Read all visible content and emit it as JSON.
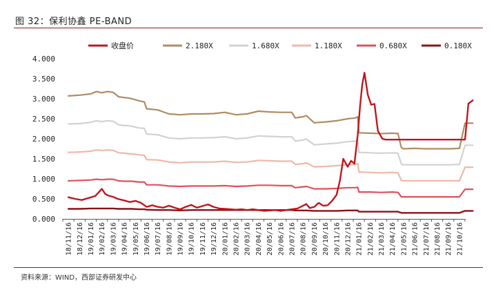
{
  "figure": {
    "title": "图 32：保利协鑫 PE-BAND",
    "source": "资料来源：WIND，西部证券研发中心"
  },
  "chart_data": {
    "type": "line",
    "title": "保利协鑫 PE-BAND",
    "xlabel": "",
    "ylabel": "",
    "ylim": [
      0,
      4
    ],
    "yticks": [
      "0.000",
      "0.500",
      "1.000",
      "1.500",
      "2.000",
      "2.500",
      "3.000",
      "3.500",
      "4.000"
    ],
    "grid": false,
    "legend_position": "top",
    "x_labels": [
      "18/11/16",
      "18/12/16",
      "19/01/16",
      "19/02/16",
      "19/03/16",
      "19/04/16",
      "19/05/16",
      "19/06/16",
      "19/07/16",
      "19/08/16",
      "19/09/16",
      "19/10/16",
      "19/11/16",
      "19/12/16",
      "20/01/16",
      "20/02/16",
      "20/03/16",
      "20/04/16",
      "20/05/16",
      "20/06/16",
      "20/07/16",
      "20/08/16",
      "20/09/16",
      "20/10/16",
      "20/11/16",
      "20/12/16",
      "21/01/16",
      "21/02/16",
      "21/03/16",
      "21/04/16",
      "21/05/16",
      "21/06/16",
      "21/07/16",
      "21/08/16",
      "21/09/16",
      "21/10/16"
    ],
    "series": [
      {
        "name": "收盘价",
        "color": "#c0161e",
        "width": 2.4,
        "x": [
          0,
          0.6,
          1.2,
          1.8,
          2.4,
          3,
          3.3,
          3.6,
          4,
          4.4,
          5,
          5.5,
          6,
          6.5,
          7,
          7.5,
          8,
          8.5,
          9,
          9.5,
          10,
          10.5,
          11,
          11.5,
          12,
          12.5,
          13,
          13.5,
          14,
          14.5,
          15,
          15.5,
          16,
          16.5,
          17,
          17.5,
          18,
          18.5,
          19,
          19.5,
          20,
          20.5,
          21,
          21.3,
          21.6,
          22,
          22.4,
          22.8,
          23.2,
          23.6,
          24,
          24.3,
          24.6,
          25,
          25.3,
          25.6,
          25.9,
          26.1,
          26.3,
          26.5,
          26.8,
          27.1,
          27.4,
          27.7,
          27.9,
          28.1,
          28.4,
          28.7,
          29,
          29.5,
          30,
          31,
          32,
          33,
          34,
          35,
          35.5,
          35.8,
          36.2
        ],
        "values": [
          0.54,
          0.5,
          0.47,
          0.52,
          0.57,
          0.75,
          0.62,
          0.58,
          0.55,
          0.5,
          0.46,
          0.42,
          0.45,
          0.4,
          0.3,
          0.34,
          0.3,
          0.28,
          0.33,
          0.28,
          0.24,
          0.3,
          0.35,
          0.28,
          0.32,
          0.36,
          0.3,
          0.26,
          0.25,
          0.24,
          0.23,
          0.24,
          0.22,
          0.24,
          0.22,
          0.2,
          0.21,
          0.22,
          0.2,
          0.22,
          0.24,
          0.26,
          0.33,
          0.37,
          0.27,
          0.3,
          0.4,
          0.33,
          0.34,
          0.45,
          0.6,
          0.95,
          1.5,
          1.3,
          1.45,
          1.38,
          2.1,
          2.8,
          3.35,
          3.65,
          3.1,
          2.85,
          2.87,
          2.2,
          2.1,
          2.0,
          1.98,
          1.98,
          1.98,
          1.98,
          1.98,
          1.98,
          1.98,
          1.98,
          1.98,
          1.98,
          1.98,
          2.88,
          2.96
        ]
      },
      {
        "name": "2.180X",
        "color": "#b08b64",
        "width": 2.2,
        "x": [
          0,
          1,
          2,
          2.5,
          3,
          3.5,
          4,
          4.5,
          5,
          5.3,
          5.7,
          6.3,
          6.8,
          7,
          8,
          9,
          10,
          11,
          12,
          13,
          14,
          15,
          16,
          17,
          18,
          19,
          20,
          20.3,
          21,
          21.3,
          22,
          23,
          24,
          25,
          25.7,
          25.9,
          26,
          27,
          28,
          29,
          29.5,
          29.8,
          30,
          31,
          32,
          33,
          34,
          35,
          35.5,
          36.2
        ],
        "values": [
          3.07,
          3.09,
          3.12,
          3.18,
          3.15,
          3.18,
          3.16,
          3.05,
          3.03,
          3.02,
          3.0,
          2.95,
          2.92,
          2.75,
          2.72,
          2.62,
          2.6,
          2.62,
          2.62,
          2.63,
          2.66,
          2.6,
          2.62,
          2.69,
          2.67,
          2.66,
          2.66,
          2.52,
          2.55,
          2.58,
          2.4,
          2.42,
          2.45,
          2.5,
          2.52,
          2.55,
          2.15,
          2.14,
          2.13,
          2.14,
          2.13,
          1.78,
          1.75,
          1.76,
          1.75,
          1.75,
          1.75,
          1.76,
          2.39,
          2.39
        ]
      },
      {
        "name": "1.680X",
        "color": "#d2d2d2",
        "width": 2.2,
        "x": [
          0,
          1,
          2,
          2.5,
          3,
          3.5,
          4,
          4.5,
          5,
          5.3,
          5.7,
          6.3,
          6.8,
          7,
          8,
          9,
          10,
          11,
          12,
          13,
          14,
          15,
          16,
          17,
          18,
          19,
          20,
          20.3,
          21,
          21.3,
          22,
          23,
          24,
          25,
          25.7,
          25.9,
          26,
          27,
          28,
          29,
          29.5,
          29.8,
          30,
          31,
          32,
          33,
          34,
          35,
          35.5,
          36.2
        ],
        "values": [
          2.37,
          2.38,
          2.41,
          2.45,
          2.43,
          2.45,
          2.44,
          2.35,
          2.33,
          2.33,
          2.31,
          2.27,
          2.26,
          2.12,
          2.1,
          2.02,
          2.0,
          2.02,
          2.02,
          2.03,
          2.05,
          2.0,
          2.02,
          2.07,
          2.06,
          2.05,
          2.05,
          1.94,
          1.97,
          1.99,
          1.85,
          1.87,
          1.89,
          1.93,
          1.94,
          1.97,
          1.66,
          1.65,
          1.64,
          1.65,
          1.64,
          1.37,
          1.35,
          1.35,
          1.35,
          1.35,
          1.35,
          1.36,
          1.84,
          1.84
        ]
      },
      {
        "name": "1.180X",
        "color": "#efb8a8",
        "width": 2.2,
        "x": [
          0,
          1,
          2,
          2.5,
          3,
          3.5,
          4,
          4.5,
          5,
          5.3,
          5.7,
          6.3,
          6.8,
          7,
          8,
          9,
          10,
          11,
          12,
          13,
          14,
          15,
          16,
          17,
          18,
          19,
          20,
          20.3,
          21,
          21.3,
          22,
          23,
          24,
          25,
          25.7,
          25.9,
          26,
          27,
          28,
          29,
          29.5,
          29.8,
          30,
          31,
          32,
          33,
          34,
          35,
          35.5,
          36.2
        ],
        "values": [
          1.66,
          1.67,
          1.69,
          1.72,
          1.71,
          1.72,
          1.71,
          1.65,
          1.64,
          1.63,
          1.62,
          1.6,
          1.59,
          1.48,
          1.47,
          1.42,
          1.4,
          1.42,
          1.42,
          1.42,
          1.44,
          1.41,
          1.42,
          1.46,
          1.45,
          1.44,
          1.44,
          1.36,
          1.38,
          1.4,
          1.3,
          1.31,
          1.33,
          1.35,
          1.36,
          1.38,
          1.17,
          1.16,
          1.15,
          1.16,
          1.15,
          0.96,
          0.95,
          0.95,
          0.95,
          0.95,
          0.95,
          0.95,
          1.29,
          1.29
        ]
      },
      {
        "name": "0.680X",
        "color": "#e0505a",
        "width": 2.2,
        "x": [
          0,
          1,
          2,
          2.5,
          3,
          3.5,
          4,
          4.5,
          5,
          5.3,
          5.7,
          6.3,
          6.8,
          7,
          8,
          9,
          10,
          11,
          12,
          13,
          14,
          15,
          16,
          17,
          18,
          19,
          20,
          20.3,
          21,
          21.3,
          22,
          23,
          24,
          25,
          25.7,
          25.9,
          26,
          27,
          28,
          29,
          29.5,
          29.8,
          30,
          31,
          32,
          33,
          34,
          35,
          35.5,
          36.2
        ],
        "values": [
          0.95,
          0.96,
          0.97,
          0.99,
          0.98,
          0.99,
          0.99,
          0.95,
          0.94,
          0.94,
          0.94,
          0.92,
          0.92,
          0.85,
          0.85,
          0.82,
          0.81,
          0.82,
          0.82,
          0.82,
          0.83,
          0.81,
          0.82,
          0.84,
          0.84,
          0.83,
          0.83,
          0.78,
          0.8,
          0.81,
          0.75,
          0.75,
          0.76,
          0.78,
          0.78,
          0.79,
          0.67,
          0.67,
          0.66,
          0.67,
          0.66,
          0.55,
          0.55,
          0.55,
          0.55,
          0.55,
          0.55,
          0.55,
          0.74,
          0.74
        ]
      },
      {
        "name": "0.180X",
        "color": "#8c1016",
        "width": 2.4,
        "x": [
          0,
          1,
          2,
          2.5,
          3,
          3.5,
          4,
          4.5,
          5,
          5.3,
          5.7,
          6.3,
          6.8,
          7,
          8,
          9,
          10,
          11,
          12,
          13,
          14,
          15,
          16,
          17,
          18,
          19,
          20,
          20.3,
          21,
          21.3,
          22,
          23,
          24,
          25,
          25.7,
          25.9,
          26,
          27,
          28,
          29,
          29.5,
          29.8,
          30,
          31,
          32,
          33,
          34,
          35,
          35.5,
          36.2
        ],
        "values": [
          0.25,
          0.25,
          0.26,
          0.26,
          0.26,
          0.26,
          0.26,
          0.25,
          0.25,
          0.25,
          0.25,
          0.24,
          0.24,
          0.23,
          0.22,
          0.22,
          0.21,
          0.22,
          0.22,
          0.22,
          0.22,
          0.22,
          0.22,
          0.22,
          0.22,
          0.22,
          0.22,
          0.21,
          0.21,
          0.21,
          0.2,
          0.2,
          0.2,
          0.21,
          0.21,
          0.21,
          0.18,
          0.18,
          0.18,
          0.18,
          0.18,
          0.15,
          0.15,
          0.15,
          0.15,
          0.15,
          0.15,
          0.15,
          0.2,
          0.2
        ]
      }
    ]
  }
}
